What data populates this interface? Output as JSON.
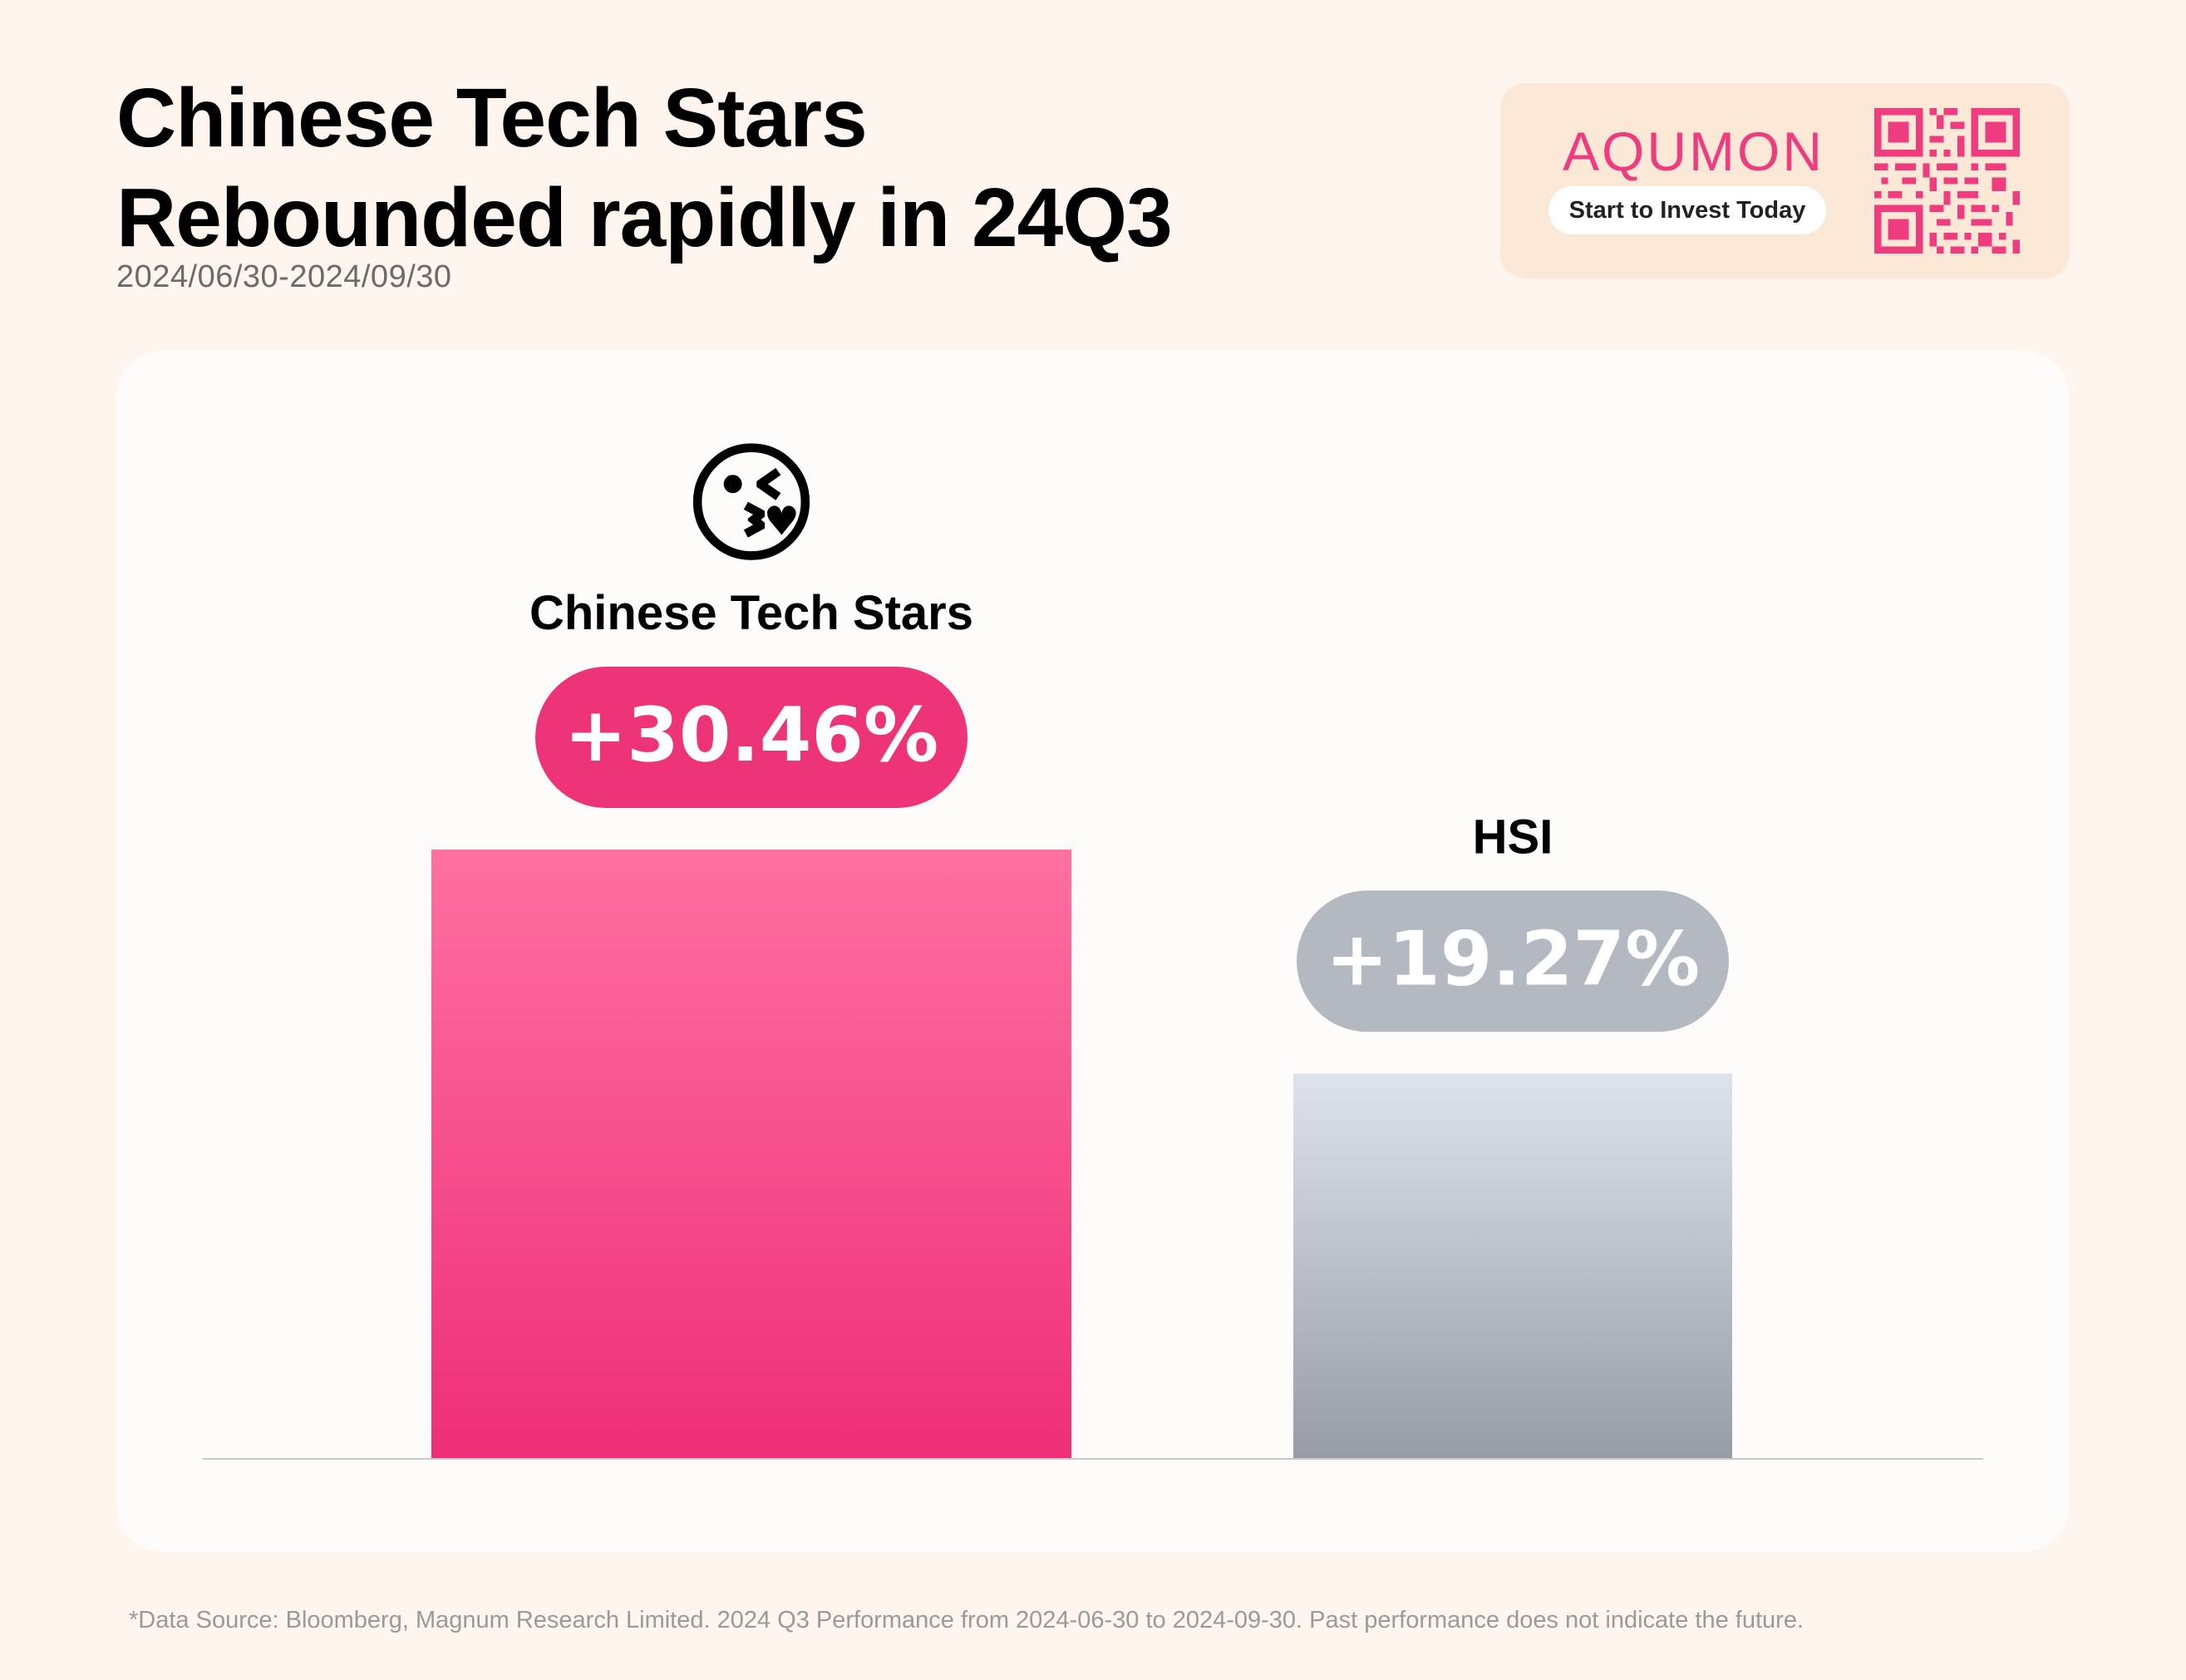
{
  "header": {
    "title_line1": "Chinese Tech Stars",
    "title_line2": "Rebounded rapidly in 24Q3",
    "date_range": "2024/06/30-2024/09/30"
  },
  "brand": {
    "name": "AQUMON",
    "cta": "Start to Invest Today",
    "accent_color": "#EE3C7E"
  },
  "chart_data": {
    "type": "bar",
    "categories": [
      "Chinese Tech Stars",
      "HSI"
    ],
    "values": [
      30.46,
      19.27
    ],
    "value_labels": [
      "+30.46%",
      "+19.27%"
    ],
    "unit": "%",
    "colors": {
      "Chinese Tech Stars": "#F0307A",
      "HSI": "#9FA3AC"
    },
    "emoji": "😘",
    "ylim": [
      0,
      30.46
    ],
    "grid": false
  },
  "footnote": "*Data Source: Bloomberg, Magnum Research Limited. 2024 Q3 Performance from 2024-06-30 to 2024-09-30. Past performance does not indicate the future."
}
